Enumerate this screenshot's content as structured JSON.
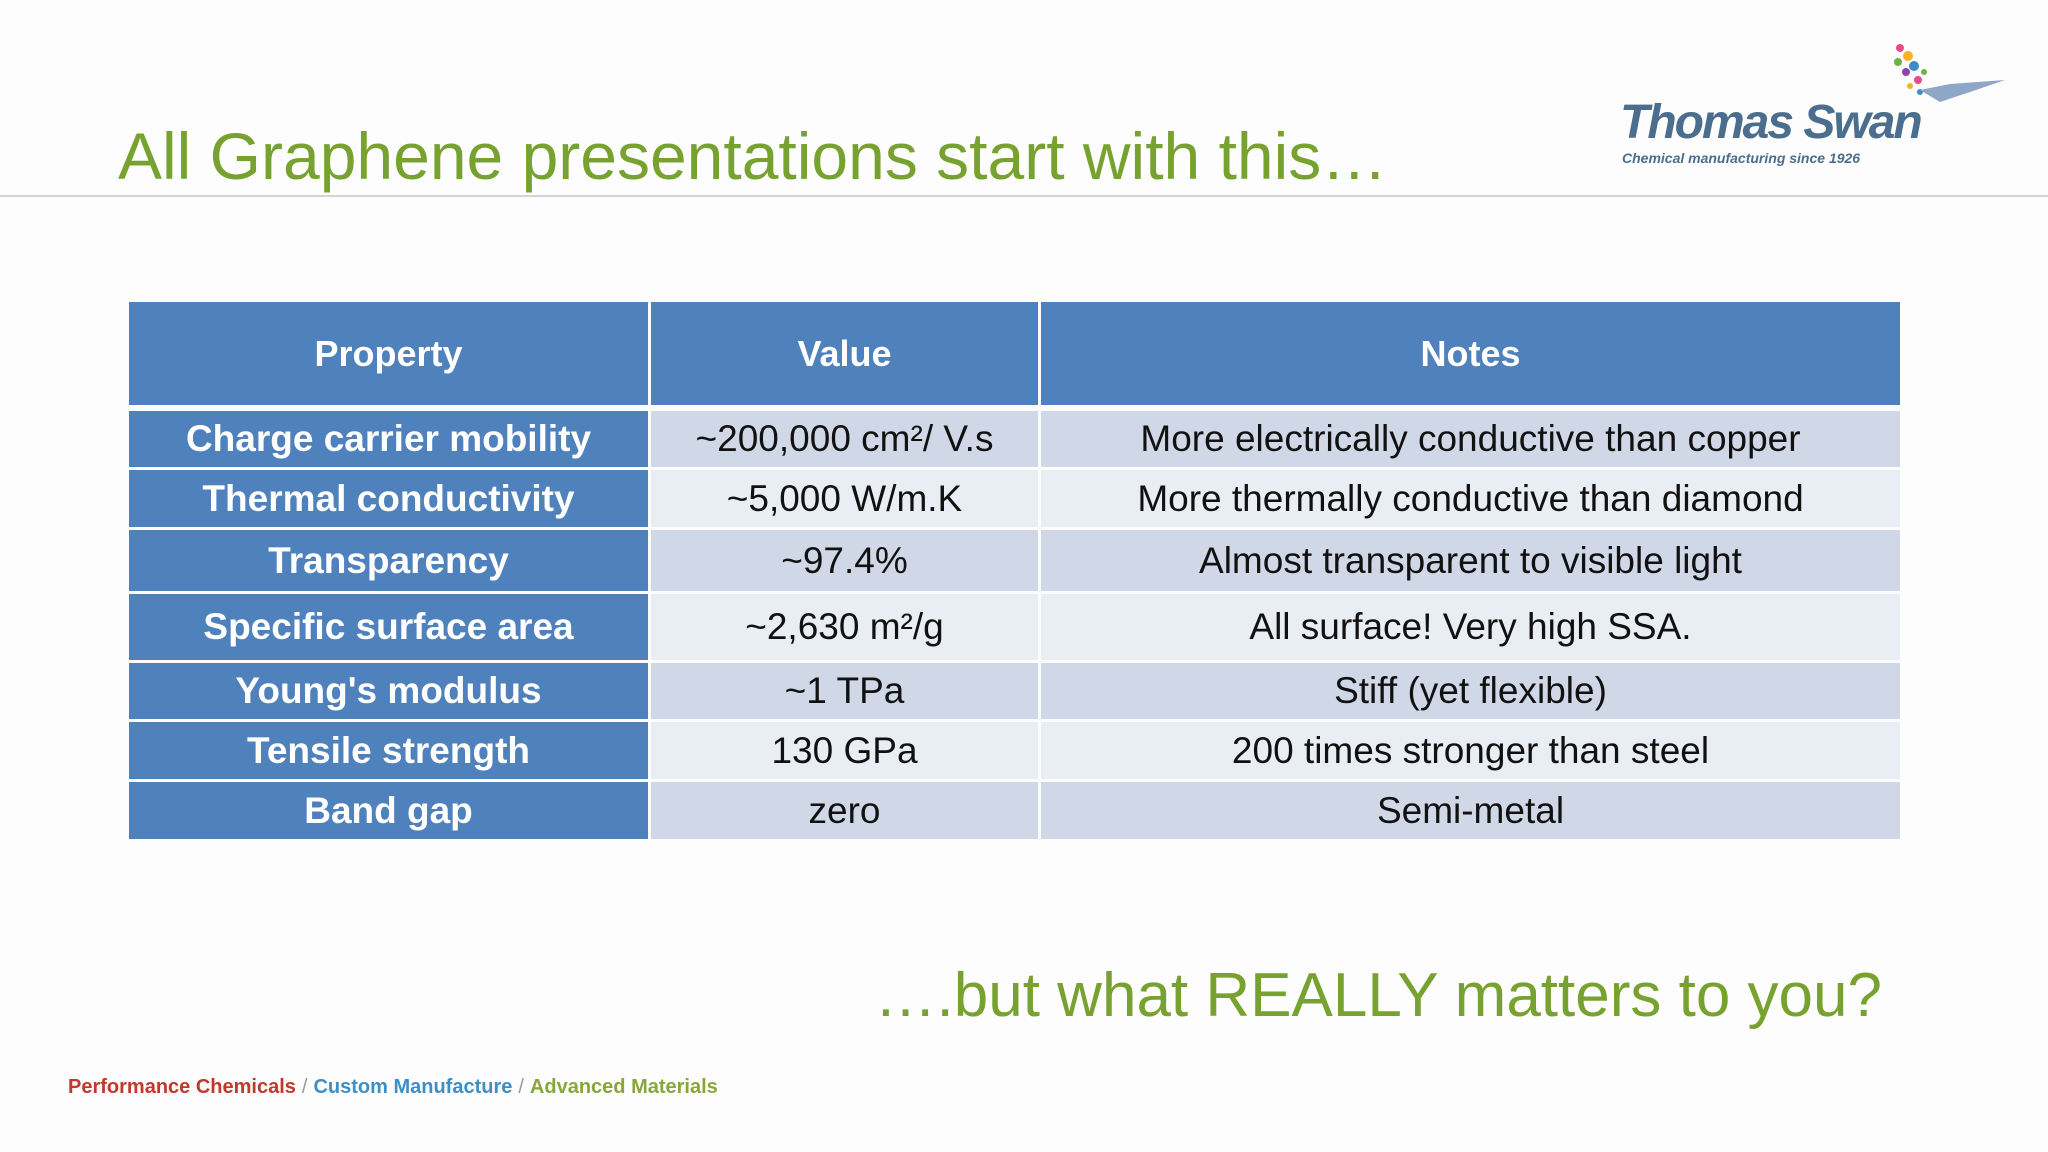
{
  "header": {
    "title": "All Graphene presentations start with this…"
  },
  "logo": {
    "name": "Thomas Swan",
    "tagline": "Chemical manufacturing since 1926"
  },
  "table": {
    "columns": [
      "Property",
      "Value",
      "Notes"
    ],
    "rows": [
      [
        "Charge carrier mobility",
        "~200,000 cm²/ V.s",
        "More electrically conductive than copper"
      ],
      [
        "Thermal conductivity",
        "~5,000 W/m.K",
        "More thermally conductive than diamond"
      ],
      [
        "Transparency",
        "~97.4%",
        "Almost transparent to visible light"
      ],
      [
        "Specific surface area",
        "~2,630 m²/g",
        "All surface! Very high SSA."
      ],
      [
        "Young's modulus",
        "~1 TPa",
        "Stiff (yet flexible)"
      ],
      [
        "Tensile strength",
        "130 GPa",
        "200 times stronger than steel"
      ],
      [
        "Band gap",
        "zero",
        "Semi-metal"
      ]
    ]
  },
  "callout": "….but what REALLY matters to you?",
  "footer": {
    "items": [
      "Performance Chemicals",
      "Custom Manufacture",
      "Advanced Materials"
    ],
    "separator": "/"
  }
}
